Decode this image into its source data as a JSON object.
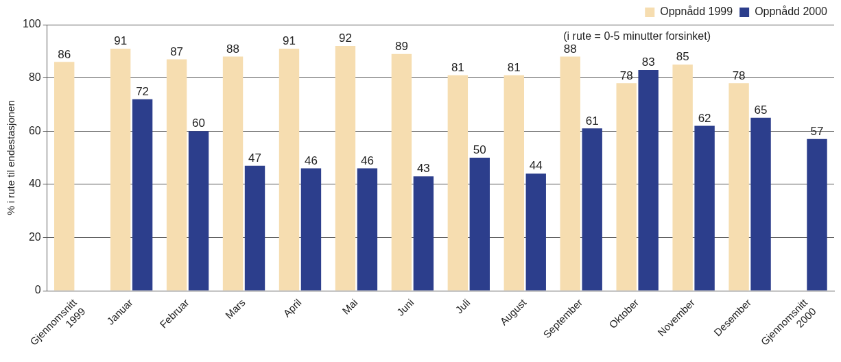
{
  "chart_data": {
    "type": "bar",
    "ylabel": "% i rute til endestasjonen",
    "categories": [
      "Gjennomsnitt 1999",
      "Januar",
      "Februar",
      "Mars",
      "April",
      "Mai",
      "Juni",
      "Juli",
      "August",
      "September",
      "Oktober",
      "November",
      "Desember",
      "Gjennomsnitt 2000"
    ],
    "series": [
      {
        "name": "Oppnådd 1999",
        "color": "#f6ddb0",
        "values": [
          86,
          91,
          87,
          88,
          91,
          92,
          89,
          81,
          81,
          88,
          78,
          85,
          78,
          null
        ]
      },
      {
        "name": "Oppnådd 2000",
        "color": "#2c3e8c",
        "values": [
          null,
          72,
          60,
          47,
          46,
          46,
          43,
          50,
          44,
          61,
          83,
          62,
          65,
          57
        ]
      }
    ],
    "ylim": [
      0,
      100
    ],
    "yticks": [
      0,
      20,
      40,
      60,
      80,
      100
    ],
    "grid": "y",
    "legend": "top right",
    "data_labels": true,
    "annotations": [
      "(i rute = 0-5 minutter forsinket)"
    ]
  }
}
